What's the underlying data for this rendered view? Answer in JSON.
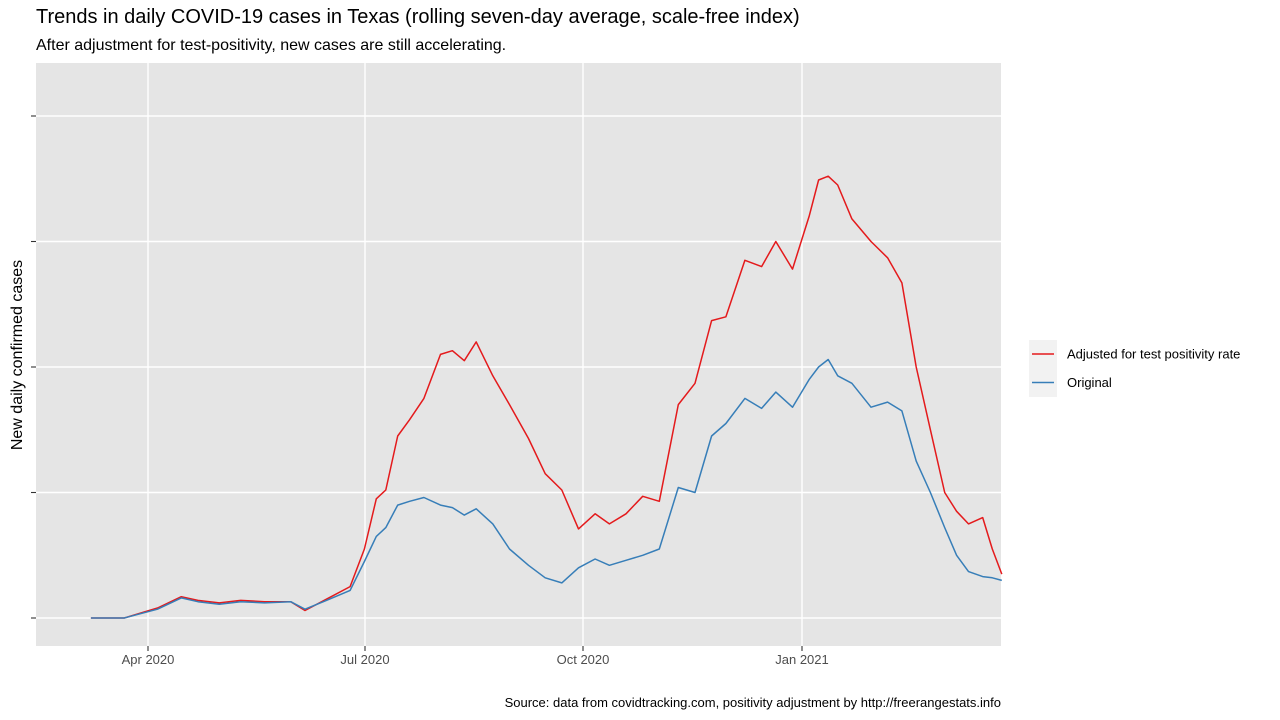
{
  "chart_data": {
    "type": "line",
    "title": "Trends in daily COVID-19 cases in Texas (rolling seven-day average, scale-free index)",
    "subtitle": "After adjustment for test-positivity, new cases are still accelerating.",
    "caption": "Source: data from covidtracking.com, positivity adjustment by http://freerangestats.info",
    "xlabel": "",
    "ylabel": "New daily confirmed cases",
    "x_ticks": [
      "Apr 2020",
      "Jul 2020",
      "Oct 2020",
      "Jan 2021"
    ],
    "y_ticks_labeled": false,
    "y_gridlines": [
      0,
      1,
      2,
      3,
      4
    ],
    "grid": true,
    "legend_position": "right",
    "series": [
      {
        "name": "Adjusted for test positivity rate",
        "color": "#e41a1c",
        "points": [
          [
            "2020-03-08",
            0.0
          ],
          [
            "2020-03-22",
            0.0
          ],
          [
            "2020-04-05",
            0.08
          ],
          [
            "2020-04-15",
            0.17
          ],
          [
            "2020-04-22",
            0.14
          ],
          [
            "2020-05-01",
            0.12
          ],
          [
            "2020-05-10",
            0.14
          ],
          [
            "2020-05-20",
            0.13
          ],
          [
            "2020-05-31",
            0.13
          ],
          [
            "2020-06-06",
            0.06
          ],
          [
            "2020-06-15",
            0.15
          ],
          [
            "2020-06-25",
            0.25
          ],
          [
            "2020-07-01",
            0.55
          ],
          [
            "2020-07-06",
            0.95
          ],
          [
            "2020-07-10",
            1.02
          ],
          [
            "2020-07-15",
            1.45
          ],
          [
            "2020-07-20",
            1.58
          ],
          [
            "2020-07-26",
            1.75
          ],
          [
            "2020-08-02",
            2.1
          ],
          [
            "2020-08-07",
            2.13
          ],
          [
            "2020-08-12",
            2.05
          ],
          [
            "2020-08-17",
            2.2
          ],
          [
            "2020-08-24",
            1.93
          ],
          [
            "2020-08-31",
            1.7
          ],
          [
            "2020-09-08",
            1.43
          ],
          [
            "2020-09-15",
            1.15
          ],
          [
            "2020-09-22",
            1.02
          ],
          [
            "2020-09-29",
            0.71
          ],
          [
            "2020-10-06",
            0.83
          ],
          [
            "2020-10-12",
            0.75
          ],
          [
            "2020-10-19",
            0.83
          ],
          [
            "2020-10-26",
            0.97
          ],
          [
            "2020-11-02",
            0.93
          ],
          [
            "2020-11-10",
            1.7
          ],
          [
            "2020-11-17",
            1.87
          ],
          [
            "2020-11-24",
            2.37
          ],
          [
            "2020-11-30",
            2.4
          ],
          [
            "2020-12-08",
            2.85
          ],
          [
            "2020-12-15",
            2.8
          ],
          [
            "2020-12-21",
            3.0
          ],
          [
            "2020-12-28",
            2.78
          ],
          [
            "2021-01-04",
            3.2
          ],
          [
            "2021-01-08",
            3.49
          ],
          [
            "2021-01-12",
            3.52
          ],
          [
            "2021-01-16",
            3.45
          ],
          [
            "2021-01-22",
            3.18
          ],
          [
            "2021-01-30",
            3.0
          ],
          [
            "2021-02-06",
            2.87
          ],
          [
            "2021-02-12",
            2.67
          ],
          [
            "2021-02-18",
            2.0
          ],
          [
            "2021-02-24",
            1.5
          ],
          [
            "2021-03-02",
            1.0
          ],
          [
            "2021-03-07",
            0.85
          ],
          [
            "2021-03-12",
            0.75
          ],
          [
            "2021-03-18",
            0.8
          ],
          [
            "2021-03-22",
            0.55
          ],
          [
            "2021-03-26",
            0.35
          ]
        ]
      },
      {
        "name": "Original",
        "color": "#377eb8",
        "points": [
          [
            "2020-03-08",
            0.0
          ],
          [
            "2020-03-22",
            0.0
          ],
          [
            "2020-04-05",
            0.07
          ],
          [
            "2020-04-15",
            0.16
          ],
          [
            "2020-04-22",
            0.13
          ],
          [
            "2020-05-01",
            0.11
          ],
          [
            "2020-05-10",
            0.13
          ],
          [
            "2020-05-20",
            0.12
          ],
          [
            "2020-05-31",
            0.13
          ],
          [
            "2020-06-06",
            0.07
          ],
          [
            "2020-06-15",
            0.14
          ],
          [
            "2020-06-25",
            0.22
          ],
          [
            "2020-07-01",
            0.45
          ],
          [
            "2020-07-06",
            0.65
          ],
          [
            "2020-07-10",
            0.72
          ],
          [
            "2020-07-15",
            0.9
          ],
          [
            "2020-07-20",
            0.93
          ],
          [
            "2020-07-26",
            0.96
          ],
          [
            "2020-08-02",
            0.9
          ],
          [
            "2020-08-07",
            0.88
          ],
          [
            "2020-08-12",
            0.82
          ],
          [
            "2020-08-17",
            0.87
          ],
          [
            "2020-08-24",
            0.75
          ],
          [
            "2020-08-31",
            0.55
          ],
          [
            "2020-09-08",
            0.42
          ],
          [
            "2020-09-15",
            0.32
          ],
          [
            "2020-09-22",
            0.28
          ],
          [
            "2020-09-29",
            0.4
          ],
          [
            "2020-10-06",
            0.47
          ],
          [
            "2020-10-12",
            0.42
          ],
          [
            "2020-10-19",
            0.46
          ],
          [
            "2020-10-26",
            0.5
          ],
          [
            "2020-11-02",
            0.55
          ],
          [
            "2020-11-10",
            1.04
          ],
          [
            "2020-11-17",
            1.0
          ],
          [
            "2020-11-24",
            1.45
          ],
          [
            "2020-11-30",
            1.55
          ],
          [
            "2020-12-08",
            1.75
          ],
          [
            "2020-12-15",
            1.67
          ],
          [
            "2020-12-21",
            1.8
          ],
          [
            "2020-12-28",
            1.68
          ],
          [
            "2021-01-04",
            1.9
          ],
          [
            "2021-01-08",
            2.0
          ],
          [
            "2021-01-12",
            2.06
          ],
          [
            "2021-01-16",
            1.93
          ],
          [
            "2021-01-22",
            1.87
          ],
          [
            "2021-01-30",
            1.68
          ],
          [
            "2021-02-06",
            1.72
          ],
          [
            "2021-02-12",
            1.65
          ],
          [
            "2021-02-18",
            1.25
          ],
          [
            "2021-02-24",
            1.0
          ],
          [
            "2021-03-02",
            0.72
          ],
          [
            "2021-03-07",
            0.5
          ],
          [
            "2021-03-12",
            0.37
          ],
          [
            "2021-03-18",
            0.33
          ],
          [
            "2021-03-22",
            0.32
          ],
          [
            "2021-03-26",
            0.3
          ]
        ]
      }
    ]
  }
}
